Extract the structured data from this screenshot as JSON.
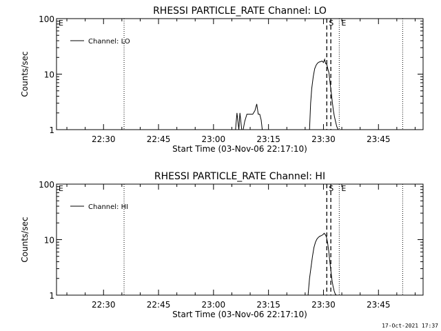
{
  "footer_timestamp": "17-Oct-2021 17:37",
  "chart_data": [
    {
      "type": "line",
      "title": "RHESSI PARTICLE_RATE Channel: LO",
      "xlabel": "Start Time (03-Nov-06 22:17:10)",
      "ylabel": "Counts/sec",
      "x_tick_labels": [
        "22:30",
        "22:45",
        "23:00",
        "23:15",
        "23:30",
        "23:45"
      ],
      "x_tick_minutes": [
        30,
        45,
        60,
        75,
        90,
        105
      ],
      "xlim_minutes": [
        17.17,
        117.17
      ],
      "y_scale": "log",
      "ylim": [
        1,
        100
      ],
      "y_tick_labels": [
        "1",
        "10",
        "100"
      ],
      "legend": {
        "label": "Channel: LO",
        "position": "top-left"
      },
      "grid": false,
      "markers": [
        {
          "label": "E",
          "minute": 17.17,
          "style": "dotted"
        },
        {
          "label": "",
          "minute": 35.6,
          "style": "dotted"
        },
        {
          "label": "S",
          "minute": 90.9,
          "style": "dashed"
        },
        {
          "label": "",
          "minute": 92.0,
          "style": "dashed"
        },
        {
          "label": "E",
          "minute": 94.3,
          "style": "dotted"
        },
        {
          "label": "",
          "minute": 111.6,
          "style": "dotted"
        }
      ],
      "series": [
        {
          "x": [
            66.0,
            66.4,
            66.9,
            67.2,
            67.7,
            68.1,
            68.5,
            69.1,
            69.7,
            70.2,
            70.7,
            71.3,
            71.8,
            72.2,
            72.6,
            73.0,
            73.3,
            86.2,
            86.5,
            86.8,
            87.2,
            87.6,
            88.0,
            88.4,
            88.8,
            89.2,
            89.6,
            90.0,
            90.3,
            90.6,
            90.9,
            91.2,
            91.5,
            91.8,
            92.1,
            92.4,
            92.7,
            93.0,
            93.3,
            93.6,
            94.0
          ],
          "y": [
            1.0,
            2.0,
            1.0,
            2.0,
            1.0,
            1.0,
            1.4,
            1.9,
            1.9,
            1.9,
            1.9,
            2.2,
            2.9,
            1.9,
            1.9,
            1.5,
            1.0,
            1.0,
            3.0,
            5.5,
            9.0,
            12.5,
            14.5,
            15.8,
            16.5,
            16.8,
            17.2,
            16.2,
            18.5,
            15.5,
            15.0,
            12.5,
            10.5,
            7.0,
            4.8,
            3.2,
            2.2,
            1.7,
            1.4,
            1.15,
            1.0
          ]
        }
      ]
    },
    {
      "type": "line",
      "title": "RHESSI PARTICLE_RATE Channel: HI",
      "xlabel": "Start Time (03-Nov-06 22:17:10)",
      "ylabel": "Counts/sec",
      "x_tick_labels": [
        "22:30",
        "22:45",
        "23:00",
        "23:15",
        "23:30",
        "23:45"
      ],
      "x_tick_minutes": [
        30,
        45,
        60,
        75,
        90,
        105
      ],
      "xlim_minutes": [
        17.17,
        117.17
      ],
      "y_scale": "log",
      "ylim": [
        1,
        100
      ],
      "y_tick_labels": [
        "1",
        "10",
        "100"
      ],
      "legend": {
        "label": "Channel: HI",
        "position": "top-left"
      },
      "grid": false,
      "markers": [
        {
          "label": "E",
          "minute": 17.17,
          "style": "dotted"
        },
        {
          "label": "",
          "minute": 35.6,
          "style": "dotted"
        },
        {
          "label": "S",
          "minute": 90.9,
          "style": "dashed"
        },
        {
          "label": "",
          "minute": 92.0,
          "style": "dashed"
        },
        {
          "label": "E",
          "minute": 94.3,
          "style": "dotted"
        },
        {
          "label": "",
          "minute": 111.6,
          "style": "dotted"
        }
      ],
      "series": [
        {
          "x": [
            85.8,
            86.2,
            86.6,
            87.0,
            87.4,
            87.8,
            88.2,
            88.6,
            89.0,
            89.4,
            89.8,
            90.2,
            90.5,
            90.8,
            91.1,
            91.4,
            91.7,
            92.0,
            92.3,
            92.6,
            92.9,
            93.2,
            93.5
          ],
          "y": [
            1.0,
            2.0,
            3.2,
            5.0,
            7.2,
            9.0,
            10.2,
            11.0,
            11.5,
            11.8,
            12.2,
            13.0,
            12.3,
            11.2,
            9.0,
            6.5,
            4.2,
            2.8,
            1.9,
            1.45,
            1.2,
            1.05,
            1.0
          ]
        }
      ]
    }
  ]
}
